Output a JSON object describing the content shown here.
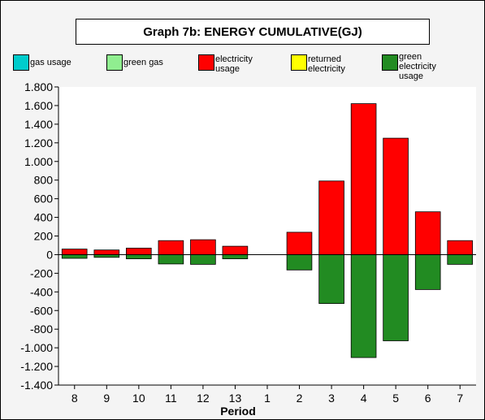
{
  "chart_data": {
    "type": "bar",
    "title": "Graph 7b: ENERGY CUMULATIVE(GJ)",
    "xlabel": "Period",
    "ylabel": "",
    "categories": [
      "8",
      "9",
      "10",
      "11",
      "12",
      "13",
      "1",
      "2",
      "3",
      "4",
      "5",
      "6",
      "7"
    ],
    "ylim": [
      -1400,
      1800
    ],
    "yticks": [
      1800,
      1600,
      1400,
      1200,
      1000,
      800,
      600,
      400,
      200,
      0,
      -200,
      -400,
      -600,
      -800,
      -1000,
      -1200,
      -1400
    ],
    "ytick_labels": [
      "1.800",
      "1.600",
      "1.400",
      "1.200",
      "1.000",
      "800",
      "600",
      "400",
      "200",
      "0",
      "-200",
      "-400",
      "-600",
      "-800",
      "-1.000",
      "-1.200",
      "-1.400"
    ],
    "series": [
      {
        "name": "gas usage",
        "color": "#00cccc",
        "values": [
          0,
          0,
          0,
          0,
          0,
          0,
          0,
          0,
          0,
          0,
          0,
          0,
          0
        ]
      },
      {
        "name": "green gas",
        "color": "#90ee90",
        "values": [
          0,
          0,
          0,
          0,
          0,
          0,
          0,
          0,
          0,
          0,
          0,
          0,
          0
        ]
      },
      {
        "name": "electricity usage",
        "color": "#ff0000",
        "values": [
          60,
          50,
          70,
          150,
          160,
          90,
          0,
          240,
          790,
          1620,
          1250,
          460,
          150
        ]
      },
      {
        "name": "returned electricity",
        "color": "#ffff00",
        "values": [
          0,
          0,
          0,
          0,
          0,
          0,
          0,
          0,
          0,
          0,
          0,
          0,
          0
        ]
      },
      {
        "name": "green electricity usage",
        "color": "#228b22",
        "values": [
          -40,
          -30,
          -45,
          -100,
          -105,
          -45,
          0,
          -165,
          -525,
          -1105,
          -925,
          -375,
          -105
        ]
      }
    ],
    "grid": false,
    "legend_position": "top"
  },
  "legend": [
    {
      "label": "gas usage",
      "color": "#00cccc"
    },
    {
      "label": "green gas",
      "color": "#90ee90"
    },
    {
      "label": "electricity usage",
      "color": "#ff0000"
    },
    {
      "label": "returned electricity",
      "color": "#ffff00"
    },
    {
      "label": "green electricity usage",
      "color": "#228b22"
    }
  ]
}
